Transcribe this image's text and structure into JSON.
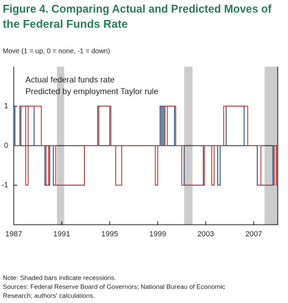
{
  "chart_data": {
    "type": "line",
    "title": [
      "Figure 4. Comparing Actual and Predicted Moves of",
      "the Federal Funds Rate"
    ],
    "subtitle": "Move (1 = up, 0 = none, -1 = down)",
    "notes": [
      "Note: Shaded bars indicate recessions.",
      "Sources: Federal Reserve Board of Governors; National Bureau of Economic",
      "Research; authors' calculations."
    ],
    "xlim": [
      1987,
      2009
    ],
    "xticks": [
      1987,
      1991,
      1995,
      1999,
      2003,
      2007
    ],
    "ylim": [
      -2,
      2
    ],
    "yticks": [
      -1,
      0,
      1
    ],
    "recessions": [
      [
        1990.6,
        1991.2
      ],
      [
        2001.2,
        2001.9
      ],
      [
        2007.9,
        2009
      ]
    ],
    "recession_color": "#cccccc",
    "legend": "upper left",
    "series": [
      {
        "name": "Predicted by employment Taylor rule",
        "color": "#1f4e79",
        "x": [
          1987,
          1987.1,
          1987.1,
          1987.6,
          1987.6,
          1988.7,
          1988.7,
          1989.6,
          1989.6,
          1990,
          1990,
          1990.3,
          1990.3,
          1992.9,
          1992.9,
          1994,
          1994,
          1995,
          1995,
          1999.2,
          1999.2,
          1999.4,
          1999.4,
          1999.6,
          1999.6,
          2000.4,
          2000.4,
          2001.2,
          2001.2,
          2002.8,
          2002.8,
          2004,
          2004,
          2004.2,
          2004.2,
          2004.7,
          2004.7,
          2006.2,
          2006.2,
          2007.3,
          2007.3,
          2008.6,
          2008.6,
          2009
        ],
        "values": [
          1,
          1,
          0,
          0,
          1,
          1,
          0,
          0,
          -1,
          -1,
          0,
          0,
          -1,
          -1,
          0,
          0,
          1,
          1,
          0,
          0,
          1,
          1,
          0,
          0,
          1,
          1,
          0,
          0,
          -1,
          -1,
          0,
          0,
          -1,
          -1,
          0,
          0,
          1,
          1,
          0,
          0,
          -1,
          -1,
          0,
          0
        ]
      },
      {
        "name": "Actual federal funds rate",
        "color": "#b83a3a",
        "x": [
          1987,
          1987.5,
          1987.5,
          1988,
          1988,
          1988.2,
          1988.2,
          1989.3,
          1989.3,
          1989.7,
          1989.7,
          1989.9,
          1989.9,
          1990.5,
          1990.5,
          1992.9,
          1992.9,
          1994.1,
          1994.1,
          1995.1,
          1995.1,
          1995.5,
          1995.5,
          1996,
          1996,
          1998.8,
          1998.8,
          1999,
          1999,
          1999.3,
          1999.3,
          1999.5,
          1999.5,
          1999.8,
          1999.8,
          2000.5,
          2000.5,
          2001,
          2001,
          2002.9,
          2002.9,
          2003.5,
          2003.5,
          2003.7,
          2003.7,
          2004.5,
          2004.5,
          2006.5,
          2006.5,
          2007.6,
          2007.6,
          2008.7,
          2008.7,
          2008.9,
          2008.9,
          2009
        ],
        "values": [
          0,
          0,
          1,
          1,
          -1,
          -1,
          1,
          1,
          0,
          0,
          -1,
          -1,
          0,
          0,
          -1,
          -1,
          0,
          0,
          1,
          1,
          0,
          0,
          -1,
          -1,
          0,
          0,
          -1,
          -1,
          0,
          0,
          1,
          1,
          0,
          0,
          1,
          1,
          0,
          0,
          -1,
          -1,
          0,
          0,
          -1,
          -1,
          0,
          0,
          1,
          1,
          0,
          0,
          -1,
          -1,
          0,
          0,
          -1,
          -1
        ]
      }
    ]
  }
}
